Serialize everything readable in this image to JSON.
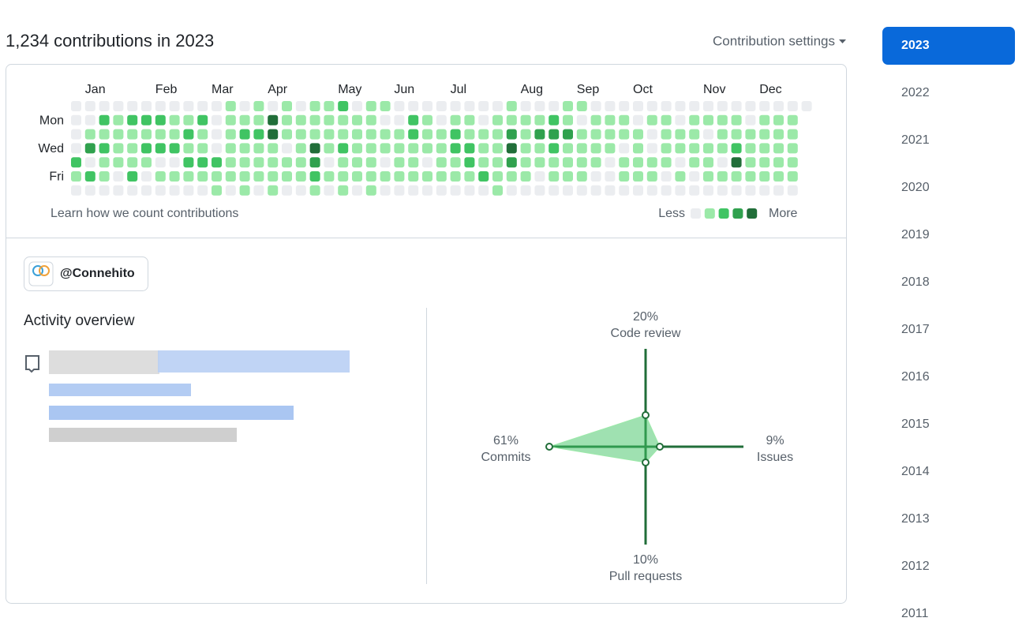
{
  "header": {
    "title": "1,234 contributions in 2023",
    "settings": "Contribution settings"
  },
  "calendar": {
    "month_labels": [
      null,
      "Jan",
      null,
      null,
      null,
      null,
      "Feb",
      null,
      null,
      null,
      "Mar",
      null,
      null,
      null,
      "Apr",
      null,
      null,
      null,
      null,
      "May",
      null,
      null,
      null,
      "Jun",
      null,
      null,
      null,
      "Jul",
      null,
      null,
      null,
      null,
      "Aug",
      null,
      null,
      null,
      "Sep",
      null,
      null,
      null,
      "Oct",
      null,
      null,
      null,
      null,
      "Nov",
      null,
      null,
      null,
      "Dec",
      null,
      null,
      null
    ],
    "day_labels": [
      null,
      "Mon",
      null,
      "Wed",
      null,
      "Fri",
      null
    ],
    "levels": [
      [
        0,
        0,
        0,
        0,
        0,
        0,
        0,
        0,
        0,
        0,
        0,
        1,
        0,
        1,
        0,
        1,
        0,
        1,
        1,
        2,
        0,
        1,
        1,
        0,
        0,
        0,
        0,
        0,
        0,
        0,
        0,
        1,
        0,
        0,
        0,
        1,
        1,
        0,
        0,
        0,
        0,
        0,
        0,
        0,
        0,
        0,
        0,
        0,
        0,
        0,
        0,
        0,
        0
      ],
      [
        0,
        0,
        2,
        1,
        2,
        2,
        2,
        1,
        1,
        2,
        0,
        1,
        1,
        1,
        4,
        1,
        1,
        1,
        1,
        1,
        1,
        1,
        0,
        0,
        2,
        1,
        0,
        1,
        1,
        0,
        1,
        1,
        1,
        1,
        2,
        1,
        0,
        1,
        1,
        1,
        0,
        1,
        1,
        0,
        1,
        1,
        1,
        1,
        0,
        1,
        1,
        1,
        null
      ],
      [
        0,
        1,
        1,
        1,
        1,
        1,
        1,
        1,
        2,
        1,
        0,
        1,
        2,
        2,
        4,
        1,
        1,
        1,
        1,
        1,
        1,
        1,
        1,
        1,
        2,
        1,
        1,
        2,
        1,
        1,
        1,
        3,
        1,
        3,
        3,
        3,
        1,
        1,
        1,
        1,
        1,
        0,
        1,
        1,
        1,
        0,
        1,
        1,
        1,
        1,
        1,
        1,
        null
      ],
      [
        0,
        3,
        2,
        1,
        1,
        2,
        2,
        2,
        1,
        1,
        0,
        1,
        1,
        1,
        1,
        0,
        1,
        4,
        1,
        2,
        1,
        1,
        1,
        1,
        1,
        1,
        1,
        2,
        2,
        1,
        1,
        4,
        1,
        1,
        2,
        1,
        1,
        1,
        1,
        0,
        1,
        0,
        1,
        1,
        1,
        1,
        1,
        2,
        1,
        1,
        1,
        1,
        null
      ],
      [
        2,
        0,
        1,
        1,
        1,
        1,
        0,
        0,
        2,
        2,
        2,
        1,
        1,
        1,
        1,
        1,
        1,
        3,
        0,
        1,
        1,
        1,
        0,
        1,
        1,
        0,
        1,
        1,
        2,
        1,
        1,
        3,
        1,
        1,
        1,
        1,
        1,
        1,
        0,
        1,
        1,
        1,
        1,
        0,
        1,
        1,
        0,
        4,
        1,
        1,
        1,
        1,
        null
      ],
      [
        1,
        2,
        1,
        0,
        2,
        0,
        1,
        1,
        1,
        1,
        1,
        1,
        1,
        1,
        1,
        1,
        1,
        2,
        1,
        1,
        1,
        1,
        1,
        1,
        1,
        1,
        1,
        1,
        1,
        2,
        1,
        1,
        1,
        0,
        1,
        1,
        1,
        0,
        0,
        1,
        1,
        1,
        0,
        1,
        0,
        1,
        1,
        1,
        1,
        1,
        1,
        1,
        null
      ],
      [
        0,
        0,
        0,
        0,
        0,
        0,
        0,
        0,
        0,
        0,
        1,
        0,
        1,
        0,
        1,
        0,
        0,
        1,
        0,
        1,
        0,
        1,
        0,
        0,
        0,
        0,
        0,
        0,
        0,
        0,
        1,
        0,
        0,
        0,
        0,
        0,
        0,
        0,
        0,
        0,
        0,
        0,
        0,
        0,
        0,
        0,
        0,
        0,
        0,
        0,
        0,
        0,
        null
      ]
    ],
    "level_colors": [
      "#ebedf0",
      "#9be9a8",
      "#40c463",
      "#30a14e",
      "#216e39"
    ],
    "learn": "Learn how we count contributions",
    "less": "Less",
    "more": "More",
    "legend_levels": [
      0,
      1,
      2,
      3,
      4
    ]
  },
  "org": "@Connehito",
  "activity": {
    "title": "Activity overview",
    "axes": [
      {
        "label": "Code review",
        "value": 20,
        "value_label": "20%"
      },
      {
        "label": "Issues",
        "value": 9,
        "value_label": "9%"
      },
      {
        "label": "Pull requests",
        "value": 10,
        "value_label": "10%"
      },
      {
        "label": "Commits",
        "value": 61,
        "value_label": "61%"
      }
    ]
  },
  "years": [
    "2023",
    "2022",
    "2021",
    "2020",
    "2019",
    "2018",
    "2017",
    "2016",
    "2015",
    "2014",
    "2013",
    "2012",
    "2011"
  ]
}
